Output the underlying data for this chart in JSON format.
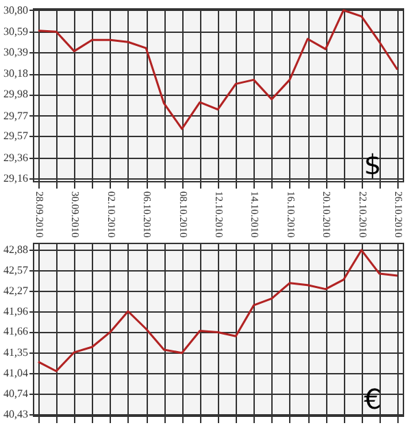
{
  "chart_data": [
    {
      "type": "line",
      "categories": [
        "28.09.2010",
        null,
        "30.09.2010",
        null,
        "02.10.2010",
        null,
        "06.10.2010",
        null,
        "08.10.2010",
        null,
        "12.10.2010",
        null,
        "14.10.2010",
        null,
        "16.10.2010",
        null,
        "20.10.2010",
        null,
        "22.10.2010",
        null,
        "26.10.2010"
      ],
      "series": [
        {
          "color": "#b22222",
          "values": [
            30.6,
            30.59,
            30.4,
            30.51,
            30.51,
            30.49,
            30.43,
            29.89,
            29.64,
            29.9,
            29.83,
            30.08,
            30.12,
            29.93,
            30.12,
            30.52,
            30.42,
            30.8,
            30.74,
            30.49,
            30.22
          ]
        }
      ],
      "ylim": [
        29.13,
        30.82
      ],
      "yticks": [
        {
          "value": 29.16,
          "label": "29,16"
        },
        {
          "value": 29.36,
          "label": "29,36"
        },
        {
          "value": 29.57,
          "label": "29,57"
        },
        {
          "value": 29.77,
          "label": "29,77"
        },
        {
          "value": 29.98,
          "label": "29,98"
        },
        {
          "value": 30.18,
          "label": "30,18"
        },
        {
          "value": 30.39,
          "label": "30,39"
        },
        {
          "value": 30.59,
          "label": "30,59"
        },
        {
          "value": 30.8,
          "label": "30,80"
        }
      ],
      "grid": true,
      "marker": "none",
      "annotations": [
        "$"
      ]
    },
    {
      "type": "line",
      "categories": [
        "28.09.2010",
        null,
        "30.09.2010",
        null,
        "02.10.2010",
        null,
        "06.10.2010",
        null,
        "08.10.2010",
        null,
        "12.10.2010",
        null,
        "14.10.2010",
        null,
        "16.10.2010",
        null,
        "20.10.2010",
        null,
        "22.10.2010",
        null,
        "26.10.2010"
      ],
      "series": [
        {
          "color": "#b22222",
          "values": [
            41.21,
            41.07,
            41.35,
            41.43,
            41.65,
            41.96,
            41.7,
            41.39,
            41.34,
            41.67,
            41.65,
            41.59,
            42.05,
            42.15,
            42.38,
            42.35,
            42.29,
            42.43,
            42.87,
            42.52,
            42.49
          ]
        }
      ],
      "ylim": [
        40.41,
        42.98
      ],
      "yticks": [
        {
          "value": 40.43,
          "label": "40,43"
        },
        {
          "value": 40.74,
          "label": "40,74"
        },
        {
          "value": 41.04,
          "label": "41,04"
        },
        {
          "value": 41.35,
          "label": "41,35"
        },
        {
          "value": 41.66,
          "label": "41,66"
        },
        {
          "value": 41.96,
          "label": "41,96"
        },
        {
          "value": 42.27,
          "label": "42,27"
        },
        {
          "value": 42.57,
          "label": "42,57"
        },
        {
          "value": 42.88,
          "label": "42,88"
        }
      ],
      "grid": true,
      "marker": "none",
      "tick_labels": "y",
      "annotations": [
        "€"
      ]
    }
  ]
}
